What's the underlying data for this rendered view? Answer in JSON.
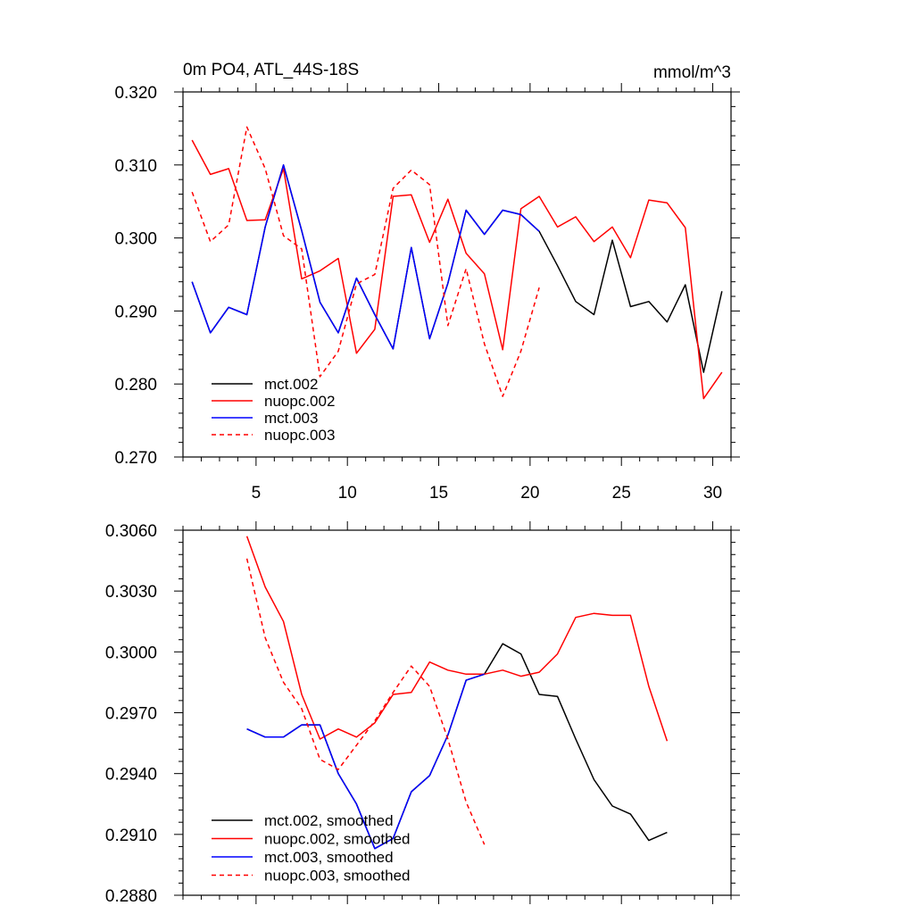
{
  "colors": {
    "mct_002": "#000000",
    "nuopc_002": "#ff0000",
    "mct_003": "#0000ff",
    "nuopc_003": "#ff0000"
  },
  "chart_data": [
    {
      "type": "line",
      "title": "0m PO4, ATL_44S-18S",
      "units": "mmol/m^3",
      "xlim": [
        1,
        31
      ],
      "ylim": [
        0.27,
        0.32
      ],
      "xticks": [
        5,
        10,
        15,
        20,
        25,
        30
      ],
      "xtick_labels": [
        "5",
        "10",
        "15",
        "20",
        "25",
        "30"
      ],
      "yticks": [
        0.27,
        0.28,
        0.29,
        0.3,
        0.31,
        0.32
      ],
      "ytick_labels": [
        "0.270",
        "0.280",
        "0.290",
        "0.300",
        "0.310",
        "0.320"
      ],
      "legend_position": "bottom-left",
      "series": [
        {
          "name": "mct.002",
          "color": "#000000",
          "dash": false,
          "x": [
            1.5,
            2.5,
            3.5,
            4.5,
            5.5,
            6.5,
            7.5,
            8.5,
            9.5,
            10.5,
            11.5,
            12.5,
            13.5,
            14.5,
            15.5,
            16.5,
            17.5,
            18.5,
            19.5,
            20.5,
            21.5,
            22.5,
            23.5,
            24.5,
            25.5,
            26.5,
            27.5,
            28.5,
            29.5,
            30.5
          ],
          "y": [
            0.294,
            0.287,
            0.2905,
            0.2895,
            0.3015,
            0.31,
            0.301,
            0.2912,
            0.287,
            0.2945,
            0.2895,
            0.2848,
            0.2987,
            0.2862,
            0.2938,
            0.3038,
            0.3005,
            0.3038,
            0.3032,
            0.3009,
            0.2962,
            0.2913,
            0.2895,
            0.2997,
            0.2906,
            0.2913,
            0.2885,
            0.2936,
            0.2816,
            0.2927
          ]
        },
        {
          "name": "nuopc.002",
          "color": "#ff0000",
          "dash": false,
          "x": [
            1.5,
            2.5,
            3.5,
            4.5,
            5.5,
            6.5,
            7.5,
            8.5,
            9.5,
            10.5,
            11.5,
            12.5,
            13.5,
            14.5,
            15.5,
            16.5,
            17.5,
            18.5,
            19.5,
            20.5,
            21.5,
            22.5,
            23.5,
            24.5,
            25.5,
            26.5,
            27.5,
            28.5,
            29.5,
            30.5
          ],
          "y": [
            0.3134,
            0.3087,
            0.3095,
            0.3024,
            0.3025,
            0.3095,
            0.2944,
            0.2955,
            0.2972,
            0.2842,
            0.2875,
            0.3057,
            0.3059,
            0.2994,
            0.3053,
            0.2979,
            0.2951,
            0.2847,
            0.304,
            0.3057,
            0.3015,
            0.3029,
            0.2995,
            0.3015,
            0.2973,
            0.3052,
            0.3048,
            0.3014,
            0.278,
            0.2816
          ]
        },
        {
          "name": "mct.003",
          "color": "#0000ff",
          "dash": false,
          "x": [
            1.5,
            2.5,
            3.5,
            4.5,
            5.5,
            6.5,
            7.5,
            8.5,
            9.5,
            10.5,
            11.5,
            12.5,
            13.5,
            14.5,
            15.5,
            16.5,
            17.5,
            18.5,
            19.5,
            20.5
          ],
          "y": [
            0.294,
            0.287,
            0.2905,
            0.2895,
            0.3015,
            0.31,
            0.301,
            0.2912,
            0.287,
            0.2945,
            0.2895,
            0.2848,
            0.2987,
            0.2862,
            0.2938,
            0.3038,
            0.3005,
            0.3038,
            0.3032,
            0.3009
          ]
        },
        {
          "name": "nuopc.003",
          "color": "#ff0000",
          "dash": true,
          "x": [
            1.5,
            2.5,
            3.5,
            4.5,
            5.5,
            6.5,
            7.5,
            8.5,
            9.5,
            10.5,
            11.5,
            12.5,
            13.5,
            14.5,
            15.5,
            16.5,
            17.5,
            18.5,
            19.5,
            20.5
          ],
          "y": [
            0.3063,
            0.2995,
            0.3018,
            0.3152,
            0.3095,
            0.3003,
            0.2985,
            0.281,
            0.2845,
            0.2937,
            0.295,
            0.3068,
            0.3093,
            0.3073,
            0.288,
            0.2958,
            0.2855,
            0.2783,
            0.2845,
            0.2932
          ]
        }
      ]
    },
    {
      "type": "line",
      "title": "",
      "xlim": [
        1,
        31
      ],
      "ylim": [
        0.288,
        0.306
      ],
      "xticks": [
        5,
        10,
        15,
        20,
        25,
        30
      ],
      "yticks": [
        0.288,
        0.291,
        0.294,
        0.297,
        0.3,
        0.303,
        0.306
      ],
      "ytick_labels": [
        "0.2880",
        "0.2910",
        "0.2940",
        "0.2970",
        "0.3000",
        "0.3030",
        "0.3060"
      ],
      "legend_position": "bottom-left",
      "series": [
        {
          "name": "mct.002, smoothed",
          "color": "#000000",
          "dash": false,
          "x": [
            4.5,
            5.5,
            6.5,
            7.5,
            8.5,
            9.5,
            10.5,
            11.5,
            12.5,
            13.5,
            14.5,
            15.5,
            16.5,
            17.5,
            18.5,
            19.5,
            20.5,
            21.5,
            22.5,
            23.5,
            24.5,
            25.5,
            26.5,
            27.5
          ],
          "y": [
            0.2962,
            0.2958,
            0.2958,
            0.2964,
            0.2964,
            0.294,
            0.2925,
            0.2903,
            0.2908,
            0.2931,
            0.2939,
            0.2959,
            0.2986,
            0.2989,
            0.3004,
            0.2999,
            0.2979,
            0.2978,
            0.2957,
            0.2937,
            0.2924,
            0.292,
            0.2907,
            0.2911
          ]
        },
        {
          "name": "nuopc.002, smoothed",
          "color": "#ff0000",
          "dash": false,
          "x": [
            4.5,
            5.5,
            6.5,
            7.5,
            8.5,
            9.5,
            10.5,
            11.5,
            12.5,
            13.5,
            14.5,
            15.5,
            16.5,
            17.5,
            18.5,
            19.5,
            20.5,
            21.5,
            22.5,
            23.5,
            24.5,
            25.5,
            26.5,
            27.5
          ],
          "y": [
            0.3057,
            0.3032,
            0.3015,
            0.2979,
            0.2957,
            0.2962,
            0.2958,
            0.2965,
            0.2979,
            0.298,
            0.2995,
            0.2991,
            0.2989,
            0.2989,
            0.2991,
            0.2988,
            0.299,
            0.2999,
            0.3017,
            0.3019,
            0.3018,
            0.3018,
            0.2983,
            0.2956
          ]
        },
        {
          "name": "mct.003, smoothed",
          "color": "#0000ff",
          "dash": false,
          "x": [
            4.5,
            5.5,
            6.5,
            7.5,
            8.5,
            9.5,
            10.5,
            11.5,
            12.5,
            13.5,
            14.5,
            15.5,
            16.5,
            17.5
          ],
          "y": [
            0.2962,
            0.2958,
            0.2958,
            0.2964,
            0.2964,
            0.294,
            0.2925,
            0.2903,
            0.2908,
            0.2931,
            0.2939,
            0.2959,
            0.2986,
            0.2989
          ]
        },
        {
          "name": "nuopc.003, smoothed",
          "color": "#ff0000",
          "dash": true,
          "x": [
            4.5,
            5.5,
            6.5,
            7.5,
            8.5,
            9.5,
            10.5,
            11.5,
            12.5,
            13.5,
            14.5,
            15.5,
            16.5,
            17.5
          ],
          "y": [
            0.3046,
            0.3007,
            0.2985,
            0.2972,
            0.2947,
            0.2942,
            0.2954,
            0.2966,
            0.298,
            0.2993,
            0.2983,
            0.2957,
            0.2926,
            0.2905
          ]
        }
      ]
    }
  ]
}
